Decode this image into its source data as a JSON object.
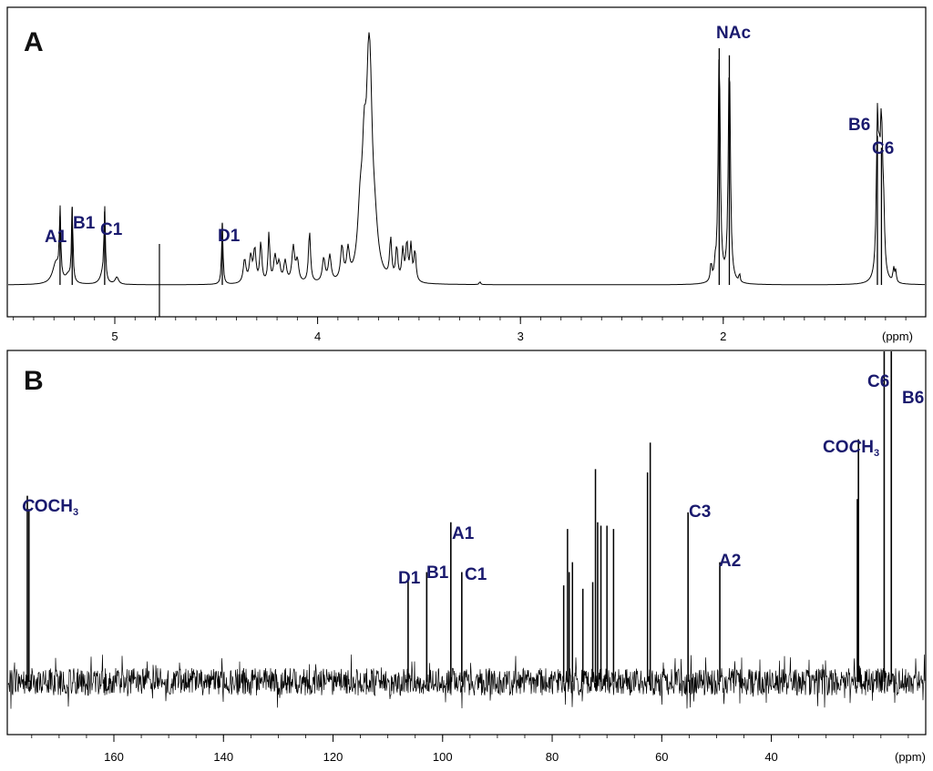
{
  "colors": {
    "axis": "#000000",
    "trace": "#000000",
    "label": "#1a1a6e",
    "background": "#ffffff"
  },
  "chart_data": [
    {
      "type": "line",
      "title": "A",
      "xlabel": "(ppm)",
      "x_ticks": [
        "5",
        "4",
        "3",
        "2"
      ],
      "xlim": [
        5.5,
        0.95
      ],
      "x_reversed": true,
      "y_axis": "none",
      "grid": false,
      "peaks": [
        {
          "label": "A1",
          "ppm": 5.27,
          "height": 0.29
        },
        {
          "label": "B1",
          "ppm": 5.21,
          "height": 0.33
        },
        {
          "label": "C1",
          "ppm": 5.05,
          "height": 0.31
        },
        {
          "label": "D1",
          "ppm": 4.47,
          "height": 0.26
        },
        {
          "label": "NAc",
          "ppm": 2.02,
          "height": 1.0
        },
        {
          "label": "NAc",
          "ppm": 1.97,
          "height": 0.97
        },
        {
          "label": "B6",
          "ppm": 1.24,
          "height": 0.63
        },
        {
          "label": "C6",
          "ppm": 1.22,
          "height": 0.58
        }
      ],
      "annotations": [
        "A1",
        "B1",
        "C1",
        "D1",
        "NAc",
        "B6",
        "C6"
      ]
    },
    {
      "type": "line",
      "title": "B",
      "xlabel": "(ppm)",
      "x_ticks": [
        "160",
        "140",
        "120",
        "100",
        "80",
        "60",
        "40"
      ],
      "xlim": [
        179,
        14
      ],
      "x_reversed": true,
      "y_axis": "none",
      "grid": false,
      "peaks": [
        {
          "label": "COCH3",
          "ppm": 175.8,
          "height": 0.56
        },
        {
          "label": "D1",
          "ppm": 106.3,
          "height": 0.31
        },
        {
          "label": "B1",
          "ppm": 102.9,
          "height": 0.33
        },
        {
          "label": "A1",
          "ppm": 98.5,
          "height": 0.48
        },
        {
          "label": "C1",
          "ppm": 96.5,
          "height": 0.33
        },
        {
          "label": "C3",
          "ppm": 55.2,
          "height": 0.51
        },
        {
          "label": "A2",
          "ppm": 49.4,
          "height": 0.36
        },
        {
          "label": "COCH3",
          "ppm": 24.1,
          "height": 0.73
        },
        {
          "label": "C6",
          "ppm": 19.4,
          "height": 1.0
        },
        {
          "label": "B6",
          "ppm": 18.1,
          "height": 1.0
        }
      ],
      "annotations": [
        "COCH3",
        "D1",
        "B1",
        "A1",
        "C1",
        "C3",
        "A2",
        "COCH3",
        "C6",
        "B6"
      ]
    }
  ],
  "panels": {
    "a": {
      "letter": "A",
      "unit": "(ppm)",
      "ticks": [
        "5",
        "4",
        "3",
        "2"
      ],
      "labels": [
        "A1",
        "B1",
        "C1",
        "D1",
        "NAc",
        "B6",
        "C6"
      ]
    },
    "b": {
      "letter": "B",
      "unit": "(ppm)",
      "ticks": [
        "160",
        "140",
        "120",
        "100",
        "80",
        "60",
        "40"
      ],
      "labels": [
        "D1",
        "B1",
        "A1",
        "C1",
        "C3",
        "A2",
        "C6",
        "B6"
      ],
      "acetyl_left": {
        "italic": "C",
        "rest": "OCH",
        "sub": "3"
      },
      "acetyl_right": {
        "plain": "CO",
        "italic": "C",
        "rest": "H",
        "sub": "3"
      }
    }
  }
}
